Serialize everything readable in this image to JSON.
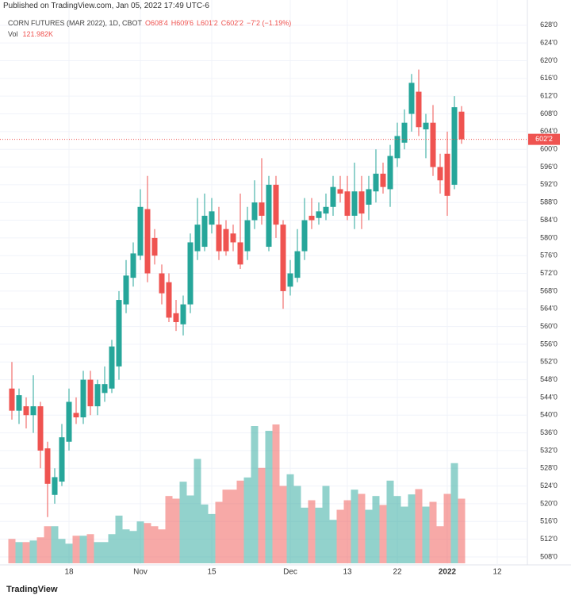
{
  "header": {
    "published": "Published on TradingView.com, Jan 05, 2022 17:49 UTC-6"
  },
  "chart_data": {
    "type": "candlestick",
    "title": "CORN FUTURES (MAR 2022), 1D, CBOT",
    "ohlc_legend": [
      "O608'4",
      "H609'6",
      "L601'2",
      "C602'2",
      "−7'2 (−1.19%)"
    ],
    "volume_label": "Vol",
    "volume_value_label": "121.982K",
    "last_price_label": "602'2",
    "up_color": "#26a69a",
    "down_color": "#ef5350",
    "grid": true,
    "categories": [
      null,
      null,
      null,
      null,
      null,
      null,
      null,
      null,
      "18",
      null,
      null,
      null,
      null,
      null,
      null,
      null,
      null,
      null,
      "Nov",
      null,
      null,
      null,
      null,
      null,
      null,
      null,
      null,
      null,
      "15",
      null,
      null,
      null,
      null,
      null,
      null,
      null,
      null,
      null,
      null,
      "Dec",
      null,
      null,
      null,
      null,
      null,
      null,
      null,
      "13",
      null,
      null,
      null,
      null,
      null,
      null,
      "22",
      null,
      null,
      null,
      null,
      null,
      null,
      "2022",
      null,
      null,
      null,
      null,
      null,
      null,
      "12"
    ],
    "open": [
      546,
      541,
      542,
      540,
      542,
      532.5,
      522,
      525,
      534,
      540.5,
      539.5,
      548,
      542,
      545,
      546,
      551,
      565,
      571,
      576,
      586.5,
      580,
      572,
      570,
      563,
      560.5,
      565,
      577,
      578,
      583,
      583,
      582,
      581,
      579,
      577,
      584,
      588,
      578,
      592,
      583,
      569,
      571,
      577,
      585,
      584.5,
      585.5,
      587,
      591,
      590.5,
      585,
      590.5,
      587.5,
      590.5,
      594.5,
      591,
      598,
      601.5,
      608,
      613,
      604.5,
      606,
      596,
      599,
      592,
      608.5,
      null,
      null,
      null,
      null,
      null
    ],
    "high": [
      552,
      546,
      544,
      549,
      543,
      534,
      528,
      538,
      546,
      544,
      550,
      550,
      548,
      551,
      557,
      568,
      575,
      579,
      591,
      594,
      582,
      574,
      572,
      566,
      567,
      581,
      589,
      590,
      589,
      587,
      584,
      583,
      590,
      587,
      593,
      598,
      594,
      594,
      584,
      575,
      582,
      589,
      589,
      588,
      590,
      594,
      594,
      594,
      597,
      594,
      594,
      600,
      597,
      601,
      606,
      609,
      617,
      618,
      608,
      610,
      599,
      604,
      612,
      609.75,
      null,
      null,
      null,
      null,
      null
    ],
    "low": [
      539,
      538,
      537,
      536,
      528,
      517,
      520,
      524,
      532,
      538,
      538,
      540,
      540,
      543,
      545,
      548,
      563,
      569,
      575,
      570,
      574,
      565,
      561,
      559,
      558,
      563,
      575,
      577,
      581,
      575,
      576,
      577,
      573,
      575,
      582,
      583,
      577,
      580,
      564,
      567,
      570,
      575,
      582,
      583,
      584,
      585,
      588,
      584,
      582,
      582,
      584,
      588,
      590,
      587,
      596,
      600,
      604,
      603,
      598,
      594,
      590,
      585,
      591,
      601.25,
      null,
      null,
      null,
      null,
      null
    ],
    "close": [
      541,
      544.5,
      540,
      542,
      532,
      524.5,
      526,
      535,
      543,
      539.5,
      548,
      542,
      547,
      547,
      555.5,
      566,
      571.5,
      576.5,
      587,
      572,
      576,
      567.5,
      562,
      561,
      565,
      579,
      583,
      585,
      586,
      577,
      577,
      579,
      574,
      584,
      588,
      585,
      592,
      583,
      568,
      572,
      577,
      584,
      584,
      586,
      587,
      591.5,
      590,
      585,
      590.5,
      585.5,
      591,
      594.5,
      591.5,
      598.5,
      603,
      606,
      615,
      605,
      606,
      596,
      593,
      589.5,
      609.5,
      602.25,
      null,
      null,
      null,
      null,
      null
    ],
    "volume": [
      46,
      40,
      40,
      43,
      49,
      70,
      70,
      46,
      37,
      52,
      52,
      55,
      40,
      40,
      55,
      90,
      64,
      61,
      79,
      76,
      70,
      64,
      127,
      122,
      154,
      128,
      197,
      111,
      93,
      116,
      139,
      139,
      156,
      162,
      259,
      180,
      250,
      262,
      146,
      168,
      146,
      105,
      119,
      105,
      146,
      82,
      101,
      119,
      139,
      131,
      101,
      127,
      110,
      156,
      127,
      107,
      130,
      140,
      107,
      116,
      70,
      131,
      189,
      121.982,
      null,
      null,
      null,
      null,
      null
    ],
    "ylim": [
      506.2,
      633.7
    ],
    "yticks": [
      {
        "value": 508,
        "label": "508'0"
      },
      {
        "value": 512,
        "label": "512'0"
      },
      {
        "value": 516,
        "label": "516'0"
      },
      {
        "value": 520,
        "label": "520'0"
      },
      {
        "value": 524,
        "label": "524'0"
      },
      {
        "value": 528,
        "label": "528'0"
      },
      {
        "value": 532,
        "label": "532'0"
      },
      {
        "value": 536,
        "label": "536'0"
      },
      {
        "value": 540,
        "label": "540'0"
      },
      {
        "value": 544,
        "label": "544'0"
      },
      {
        "value": 548,
        "label": "548'0"
      },
      {
        "value": 552,
        "label": "552'0"
      },
      {
        "value": 556,
        "label": "556'0"
      },
      {
        "value": 560,
        "label": "560'0"
      },
      {
        "value": 564,
        "label": "564'0"
      },
      {
        "value": 568,
        "label": "568'0"
      },
      {
        "value": 572,
        "label": "572'0"
      },
      {
        "value": 576,
        "label": "576'0"
      },
      {
        "value": 580,
        "label": "580'0"
      },
      {
        "value": 584,
        "label": "584'0"
      },
      {
        "value": 588,
        "label": "588'0"
      },
      {
        "value": 592,
        "label": "592'0"
      },
      {
        "value": 596,
        "label": "596'0"
      },
      {
        "value": 600,
        "label": "600'0"
      },
      {
        "value": 604,
        "label": "604'0"
      },
      {
        "value": 608,
        "label": "608'0"
      },
      {
        "value": 612,
        "label": "612'0"
      },
      {
        "value": 616,
        "label": "616'0"
      },
      {
        "value": 620,
        "label": "620'0"
      },
      {
        "value": 624,
        "label": "624'0"
      },
      {
        "value": 628,
        "label": "628'0"
      }
    ]
  },
  "footer": {
    "brand": "TradingView"
  }
}
